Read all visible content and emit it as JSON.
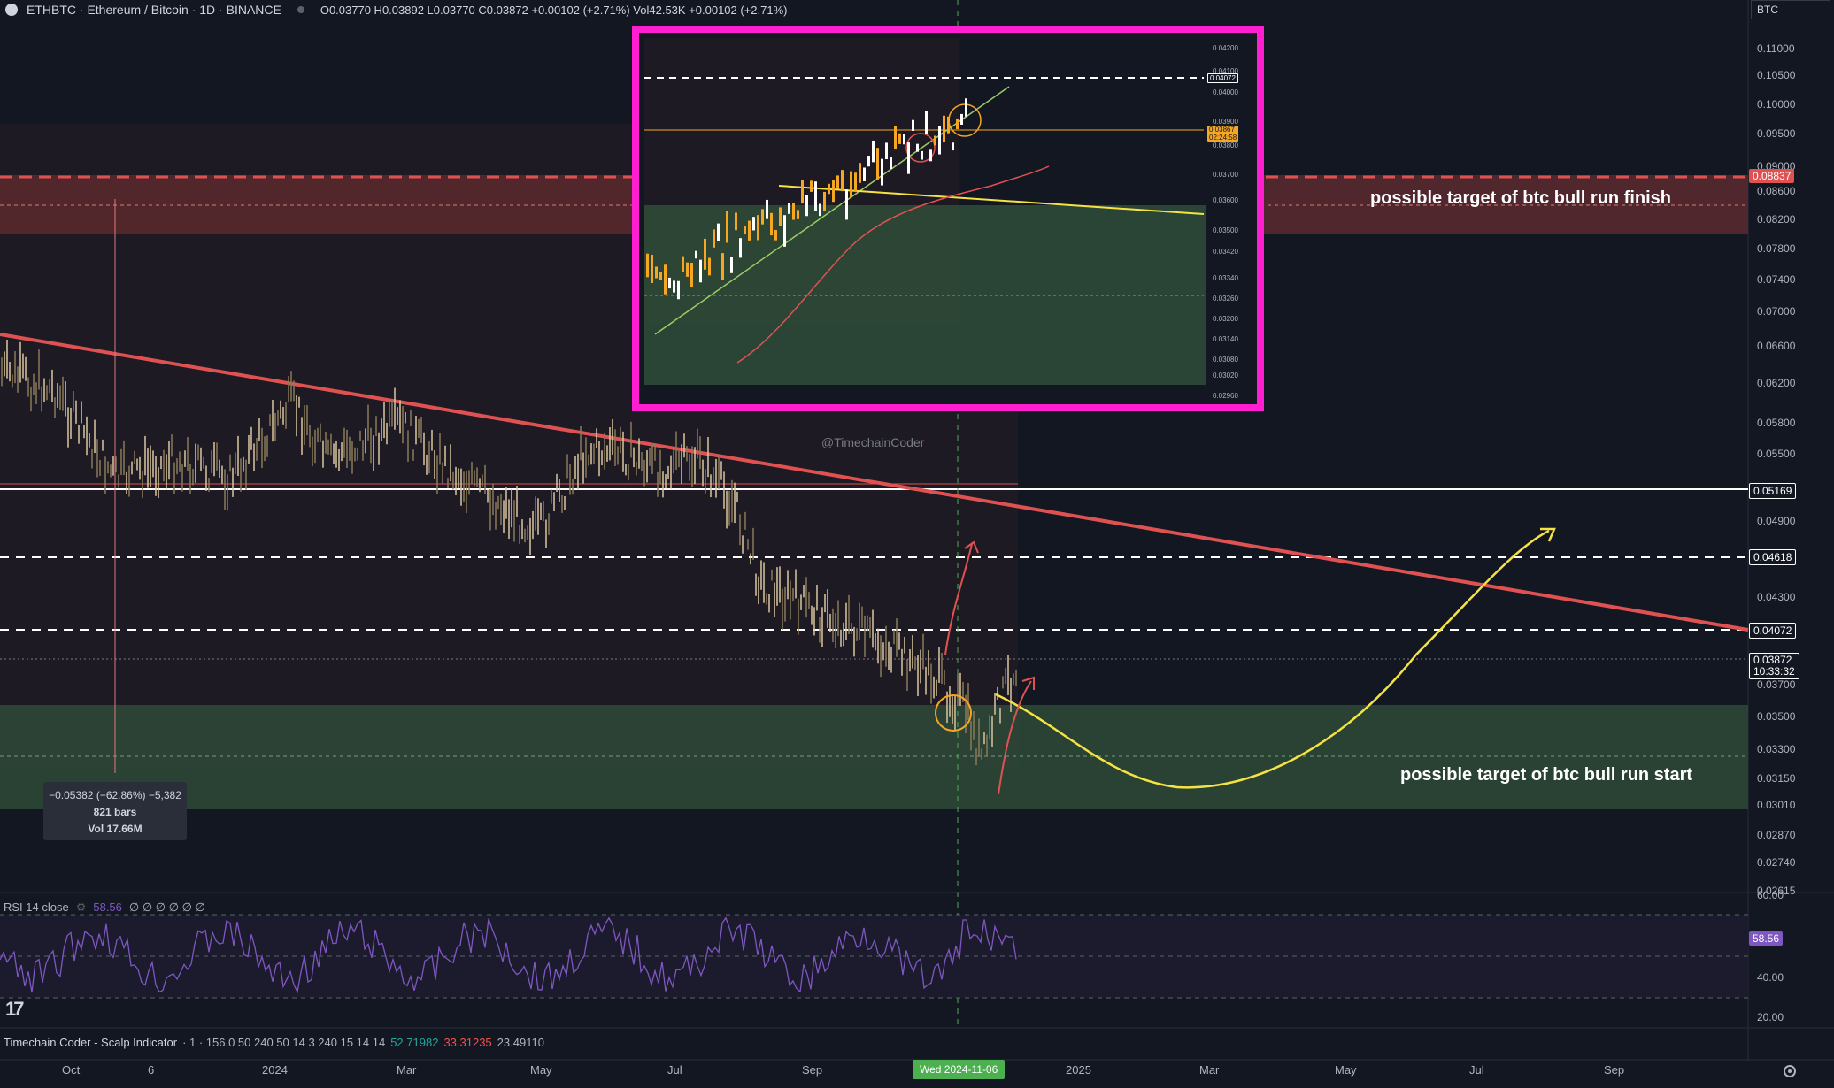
{
  "header": {
    "symbol": "ETHBTC · Ethereum / Bitcoin · 1D · BINANCE",
    "ohlc": "O0.03770 H0.03892 L0.03770 C0.03872 +0.00102 (+2.71%) Vol42.53K +0.00102 (+2.71%)",
    "currency": "BTC"
  },
  "price_axis": {
    "ticks": [
      "0.11000",
      "0.10500",
      "0.10000",
      "0.09500",
      "0.09000",
      "0.08600",
      "0.08200",
      "0.07800",
      "0.07400",
      "0.07000",
      "0.06600",
      "0.06200",
      "0.05800",
      "0.05500",
      "0.04900",
      "0.04300",
      "0.03700",
      "0.03500",
      "0.03300",
      "0.03150",
      "0.03010",
      "0.02870",
      "0.02740",
      "0.02615"
    ],
    "tags": {
      "resistance": "0.08837",
      "level1": "0.05169",
      "level2": "0.04618",
      "level3": "0.04072",
      "last_price": "0.03872",
      "countdown": "10:33:32"
    }
  },
  "annotations": {
    "top_target": "possible target of btc bull run finish",
    "bottom_target": "possible target of btc bull run start",
    "watermark": "@TimechainCoder"
  },
  "measure": {
    "change": "−0.05382 (−62.86%) −5,382",
    "bars": "821 bars",
    "vol": "Vol 17.66M"
  },
  "inset": {
    "ticks": [
      "0.04200",
      "0.04100",
      "0.04000",
      "0.03900",
      "0.03800",
      "0.03700",
      "0.03600",
      "0.03500",
      "0.03420",
      "0.03340",
      "0.03260",
      "0.03200",
      "0.03140",
      "0.03080",
      "0.03020",
      "0.02960"
    ],
    "tag_level": "0.04072",
    "tag_price": "0.03867",
    "tag_countdown": "02:24:58"
  },
  "rsi": {
    "label": "RSI 14 close",
    "value": "58.56",
    "placeholders": "∅ ∅ ∅ ∅ ∅ ∅",
    "ticks": [
      "60.00",
      "40.00",
      "20.00"
    ],
    "tag": "58.56"
  },
  "indicator": {
    "name": "Timechain Coder - Scalp Indicator",
    "params": "· 1 · 156.0 50 240 50 14 3 240 15 14 14",
    "v1": "52.71982",
    "v2": "33.31235",
    "v3": "23.49110"
  },
  "time_axis": {
    "labels": [
      "Oct",
      "6",
      "2024",
      "Mar",
      "May",
      "Jul",
      "Sep",
      "2025",
      "Mar",
      "May",
      "Jul",
      "Sep"
    ],
    "current": "Wed 2024-11-06"
  },
  "icons": {
    "logo": "tradingview-logo-icon",
    "settings": "gear-icon"
  },
  "colors": {
    "background": "#131722",
    "trendline": "#e05252",
    "target_zone_top": "#5c2a2e",
    "target_zone_bottom": "#2e4a37",
    "inset_border": "#ff1fd0",
    "projection": "#f5e342",
    "rsi": "#7e57c2"
  }
}
